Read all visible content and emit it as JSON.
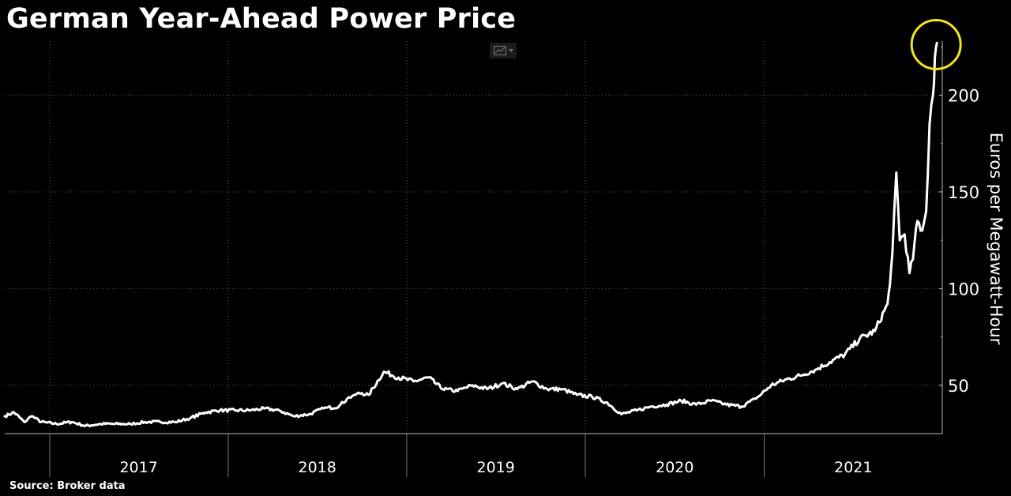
{
  "title": "German Year-Ahead Power Price",
  "source": "Source:  Broker data",
  "toolbar": {
    "chart_type_icon": "line-chart-icon",
    "dropdown_icon": "chevron-down-icon"
  },
  "chart_data": {
    "type": "line",
    "title": "German Year-Ahead Power Price",
    "xlabel": "",
    "ylabel": "Euros per Megawatt-Hour",
    "xlim": [
      "2016-10-01",
      "2021-12-31"
    ],
    "ylim": [
      25,
      228
    ],
    "yticks": [
      50,
      100,
      150,
      200
    ],
    "xticks_labels": [
      "2017",
      "2018",
      "2019",
      "2020",
      "2021"
    ],
    "grid": true,
    "y_axis_position": "right",
    "line_color": "#ffffff",
    "highlight_color": "#f0e61a",
    "highlight_point": {
      "x": "2021-12-20",
      "y": 227
    },
    "series": [
      {
        "x": [
          "2016-10-01",
          "2016-10-20",
          "2016-11-10",
          "2016-11-25",
          "2016-12-15",
          "2017-01-15",
          "2017-02-15",
          "2017-03-15",
          "2017-04-15",
          "2017-05-15",
          "2017-06-15",
          "2017-07-15",
          "2017-08-15",
          "2017-09-15",
          "2017-10-15",
          "2017-11-15",
          "2017-12-15",
          "2018-01-15",
          "2018-02-15",
          "2018-03-15",
          "2018-04-15",
          "2018-05-15",
          "2018-06-15",
          "2018-07-15",
          "2018-08-15",
          "2018-09-01",
          "2018-09-15",
          "2018-10-01",
          "2018-10-15",
          "2018-11-15",
          "2018-12-15",
          "2019-01-15",
          "2019-02-15",
          "2019-03-15",
          "2019-04-15",
          "2019-05-15",
          "2019-06-15",
          "2019-07-15",
          "2019-08-15",
          "2019-09-15",
          "2019-10-15",
          "2019-11-15",
          "2019-12-15",
          "2020-01-15",
          "2020-02-15",
          "2020-03-15",
          "2020-04-15",
          "2020-05-15",
          "2020-06-15",
          "2020-07-15",
          "2020-08-15",
          "2020-09-15",
          "2020-10-15",
          "2020-11-15",
          "2020-12-15",
          "2021-01-15",
          "2021-02-15",
          "2021-03-15",
          "2021-04-15",
          "2021-05-15",
          "2021-06-15",
          "2021-07-15",
          "2021-08-15",
          "2021-09-10",
          "2021-09-15",
          "2021-09-20",
          "2021-09-28",
          "2021-10-05",
          "2021-10-15",
          "2021-10-25",
          "2021-11-01",
          "2021-11-10",
          "2021-11-20",
          "2021-11-28",
          "2021-12-05",
          "2021-12-12",
          "2021-12-16",
          "2021-12-20"
        ],
        "values": [
          34,
          36,
          31,
          34,
          31,
          30,
          31,
          29,
          30,
          30,
          30,
          31,
          31,
          31,
          33,
          36,
          37,
          37,
          37,
          38,
          37,
          34,
          35,
          38,
          39,
          43,
          45,
          46,
          45,
          57,
          54,
          52,
          54,
          48,
          47,
          50,
          48,
          51,
          48,
          52,
          48,
          48,
          45,
          44,
          41,
          35,
          37,
          39,
          40,
          42,
          40,
          42,
          40,
          39,
          43,
          50,
          53,
          55,
          58,
          62,
          66,
          74,
          78,
          92,
          102,
          118,
          160,
          125,
          128,
          108,
          115,
          135,
          130,
          140,
          185,
          200,
          220,
          227
        ]
      }
    ]
  }
}
